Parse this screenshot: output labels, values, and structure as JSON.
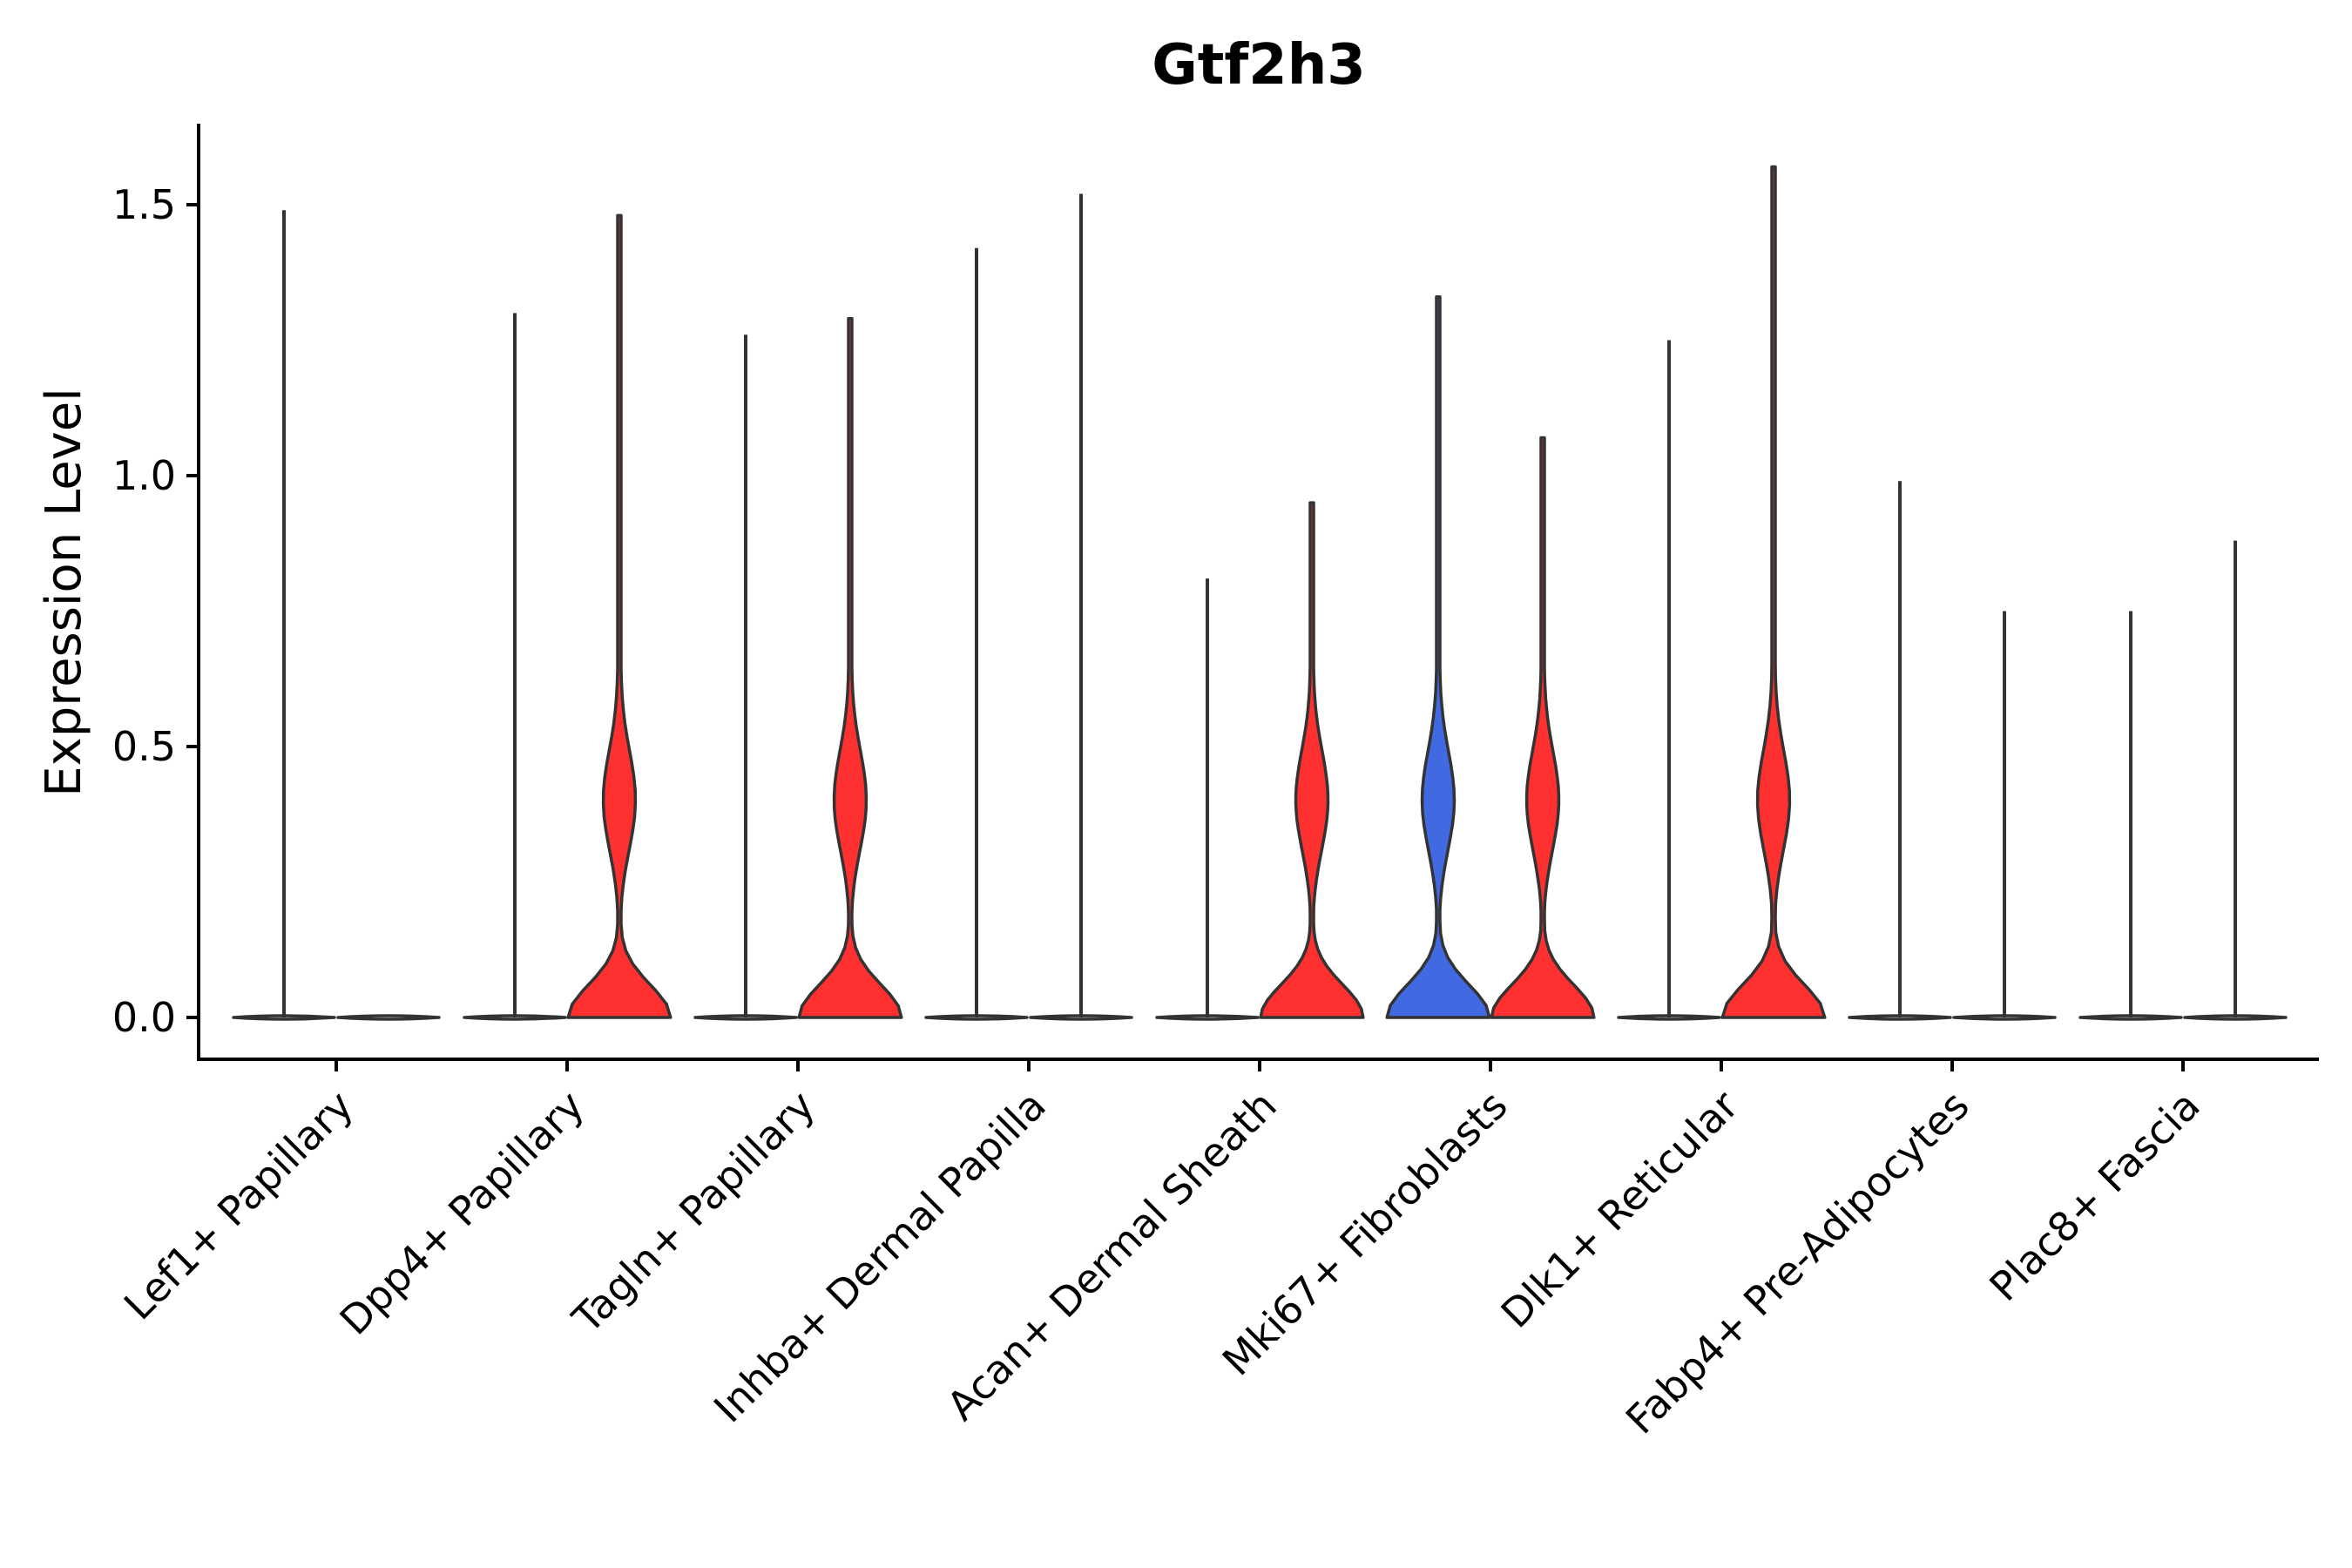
{
  "chart_data": {
    "type": "violin",
    "title": "Gtf2h3",
    "xlabel": "",
    "ylabel": "Expression Level",
    "ylim": [
      -0.08,
      1.65
    ],
    "yticks": [
      0.0,
      0.5,
      1.0,
      1.5
    ],
    "ytick_labels": [
      "0.0",
      "0.5",
      "1.0",
      "1.5"
    ],
    "categories": [
      "Lef1+ Papillary",
      "Dpp4+ Papillary",
      "Tagln+ Papillary",
      "Inhba+ Dermal Papilla",
      "Acan+ Dermal Sheath",
      "Mki67+ Fibroblasts",
      "Dlk1+ Reticular",
      "Fabp4+ Pre-Adipocytes",
      "Plac8+ Fascia"
    ],
    "colors": {
      "group1": "#4169E1",
      "group2": "#FF3030",
      "flat": "#ffffff"
    },
    "series": [
      {
        "name": "group1",
        "color": "#4169E1",
        "max": [
          1.49,
          1.3,
          1.26,
          1.42,
          0.81,
          1.33,
          1.25,
          0.99,
          0.75
        ],
        "expressed": [
          false,
          false,
          false,
          false,
          false,
          true,
          false,
          false,
          false
        ]
      },
      {
        "name": "group2",
        "color": "#FF3030",
        "max": [
          0.0,
          1.48,
          1.29,
          1.52,
          0.95,
          1.07,
          1.57,
          0.75,
          0.88
        ],
        "expressed": [
          false,
          true,
          true,
          false,
          true,
          true,
          true,
          false,
          false
        ]
      }
    ]
  }
}
